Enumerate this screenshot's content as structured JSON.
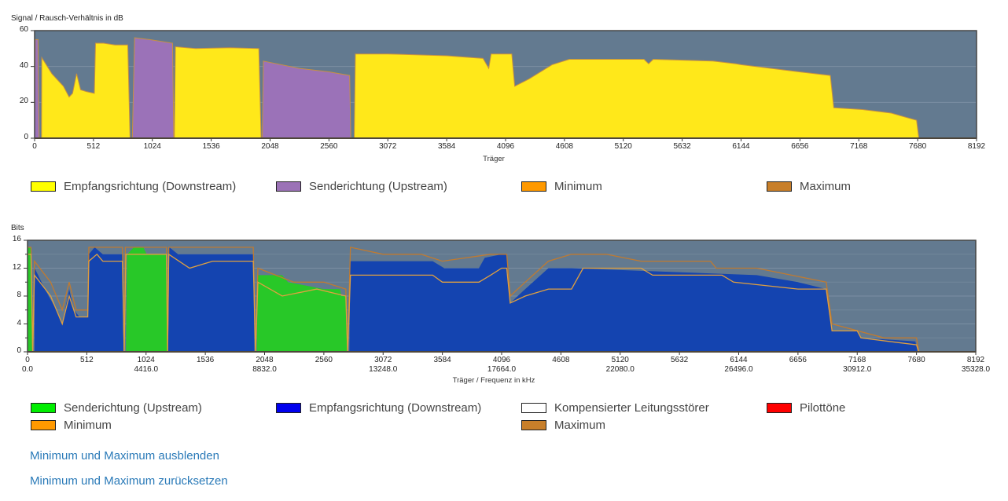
{
  "colors": {
    "plot_bg": "#637a90",
    "grid": "#7b8fa3",
    "snr_downstream": "#ffe81a",
    "snr_upstream": "#9b72b8",
    "bits_upstream": "#28c828",
    "bits_downstream": "#1444b0",
    "min_line": "#e0a040",
    "max_line": "#c07a30"
  },
  "links": {
    "hide_minmax": "Minimum und Maximum ausblenden",
    "reset_minmax": "Minimum und Maximum zurücksetzen"
  },
  "chart_data": [
    {
      "type": "area",
      "title": "Signal / Rausch-Verhältnis in dB",
      "xlabel": "Träger",
      "ylabel": "Signal / Rausch-Verhältnis in dB",
      "xlim": [
        0,
        8192
      ],
      "ylim": [
        0,
        60
      ],
      "xticks": [
        "0",
        "512",
        "1024",
        "1536",
        "2048",
        "2560",
        "3072",
        "3584",
        "4096",
        "4608",
        "5120",
        "5632",
        "6144",
        "6656",
        "7168",
        "7680",
        "8192"
      ],
      "yticks": [
        "0",
        "20",
        "40",
        "60"
      ],
      "grid": true,
      "legend": {
        "placement": "bottom",
        "items": [
          {
            "label": "Empfangsrichtung (Downstream)",
            "color": "#ffff00"
          },
          {
            "label": "Senderichtung (Upstream)",
            "color": "#9b72b6"
          },
          {
            "label": "Minimum",
            "color": "#ff9900"
          },
          {
            "label": "Maximum",
            "color": "#c87f2a"
          }
        ]
      },
      "series": [
        {
          "name": "Senderichtung (Upstream)",
          "segments": [
            [
              [
                0,
                0
              ],
              [
                5,
                55
              ],
              [
                30,
                55
              ],
              [
                40,
                0
              ]
            ],
            [
              [
                850,
                0
              ],
              [
                870,
                56
              ],
              [
                1000,
                55
              ],
              [
                1200,
                53
              ],
              [
                1210,
                0
              ]
            ],
            [
              [
                1980,
                0
              ],
              [
                1990,
                43
              ],
              [
                2300,
                39
              ],
              [
                2560,
                37
              ],
              [
                2740,
                35
              ],
              [
                2750,
                0
              ]
            ]
          ]
        },
        {
          "name": "Empfangsrichtung (Downstream)",
          "segments": [
            [
              [
                60,
                0
              ],
              [
                62,
                45
              ],
              [
                150,
                36
              ],
              [
                250,
                29
              ],
              [
                300,
                23
              ],
              [
                330,
                25
              ],
              [
                365,
                36
              ],
              [
                400,
                27
              ],
              [
                450,
                26
              ],
              [
                520,
                25
              ],
              [
                530,
                53
              ],
              [
                600,
                53
              ],
              [
                700,
                52
              ],
              [
                810,
                52
              ],
              [
                830,
                0
              ]
            ],
            [
              [
                1215,
                0
              ],
              [
                1225,
                51
              ],
              [
                1400,
                50
              ],
              [
                1700,
                50.5
              ],
              [
                1950,
                50
              ],
              [
                1970,
                0
              ]
            ],
            [
              [
                2780,
                0
              ],
              [
                2790,
                47
              ],
              [
                3072,
                47
              ],
              [
                3584,
                46
              ],
              [
                3900,
                44.5
              ],
              [
                3950,
                39
              ],
              [
                3970,
                47
              ],
              [
                4150,
                47
              ],
              [
                4175,
                29
              ],
              [
                4300,
                33
              ],
              [
                4500,
                41
              ],
              [
                4650,
                44
              ],
              [
                5300,
                44
              ],
              [
                5340,
                41.5
              ],
              [
                5380,
                44
              ],
              [
                5900,
                43
              ],
              [
                6100,
                41.5
              ],
              [
                6144,
                41
              ],
              [
                6650,
                37
              ],
              [
                6920,
                35
              ],
              [
                6950,
                17
              ],
              [
                7200,
                16
              ],
              [
                7450,
                14
              ],
              [
                7670,
                10
              ],
              [
                7690,
                0
              ]
            ]
          ]
        }
      ]
    },
    {
      "type": "area",
      "title": "Bits",
      "xlabel": "Träger / Frequenz in kHz",
      "ylabel": "Bits",
      "xlim": [
        0,
        8192
      ],
      "ylim": [
        0,
        16
      ],
      "xticks": [
        "0",
        "512",
        "1024",
        "1536",
        "2048",
        "2560",
        "3072",
        "3584",
        "4096",
        "4608",
        "5120",
        "5632",
        "6144",
        "6656",
        "7168",
        "7680",
        "8192"
      ],
      "xticks_freq": [
        "0.0",
        "4416.0",
        "8832.0",
        "13248.0",
        "17664.0",
        "22080.0",
        "26496.0",
        "30912.0",
        "35328.0"
      ],
      "yticks": [
        "0",
        "4",
        "8",
        "12",
        "16"
      ],
      "grid": true,
      "legend": {
        "placement": "bottom",
        "items": [
          {
            "label": "Senderichtung (Upstream)",
            "color": "#00ee00"
          },
          {
            "label": "Empfangsrichtung (Downstream)",
            "color": "#0000ee"
          },
          {
            "label": "Kompensierter Leitungsstörer",
            "color": "#ffffff"
          },
          {
            "label": "Pilottöne",
            "color": "#ff0000"
          },
          {
            "label": "Minimum",
            "color": "#ff9900"
          },
          {
            "label": "Maximum",
            "color": "#c87f2a"
          }
        ]
      },
      "series": [
        {
          "name": "Senderichtung (Upstream)",
          "segments": [
            [
              [
                0,
                0
              ],
              [
                5,
                15
              ],
              [
                30,
                15
              ],
              [
                40,
                0
              ]
            ],
            [
              [
                850,
                0
              ],
              [
                860,
                14
              ],
              [
                920,
                15
              ],
              [
                1000,
                15
              ],
              [
                1030,
                14
              ],
              [
                1200,
                14
              ],
              [
                1210,
                0
              ]
            ],
            [
              [
                1980,
                0
              ],
              [
                1990,
                11
              ],
              [
                2200,
                11
              ],
              [
                2250,
                10
              ],
              [
                2560,
                9
              ],
              [
                2700,
                9
              ],
              [
                2710,
                8
              ],
              [
                2750,
                8
              ],
              [
                2760,
                0
              ]
            ]
          ]
        },
        {
          "name": "Empfangsrichtung (Downstream)",
          "segments": [
            [
              [
                60,
                0
              ],
              [
                62,
                12
              ],
              [
                150,
                9
              ],
              [
                250,
                6
              ],
              [
                300,
                4
              ],
              [
                360,
                9
              ],
              [
                400,
                6
              ],
              [
                450,
                5
              ],
              [
                520,
                5
              ],
              [
                530,
                14
              ],
              [
                580,
                15
              ],
              [
                650,
                14
              ],
              [
                820,
                14
              ],
              [
                830,
                0
              ]
            ],
            [
              [
                1215,
                0
              ],
              [
                1225,
                15
              ],
              [
                1300,
                14
              ],
              [
                1950,
                14
              ],
              [
                1960,
                0
              ]
            ],
            [
              [
                2780,
                0
              ],
              [
                2790,
                13
              ],
              [
                3500,
                13
              ],
              [
                3600,
                12
              ],
              [
                3900,
                12
              ],
              [
                3950,
                13.5
              ],
              [
                4096,
                14
              ],
              [
                4140,
                14
              ],
              [
                4170,
                7
              ],
              [
                4300,
                9
              ],
              [
                4500,
                12
              ],
              [
                4600,
                12
              ],
              [
                4700,
                12
              ],
              [
                6300,
                11
              ],
              [
                6656,
                10
              ],
              [
                6900,
                9
              ],
              [
                6950,
                3
              ],
              [
                7168,
                3
              ],
              [
                7200,
                2
              ],
              [
                7670,
                1.5
              ],
              [
                7690,
                0
              ]
            ]
          ]
        },
        {
          "name": "Maximum",
          "line": [
            [
              0,
              15
            ],
            [
              30,
              15
            ],
            [
              45,
              0
            ],
            [
              60,
              13
            ],
            [
              200,
              10
            ],
            [
              300,
              6
            ],
            [
              360,
              10
            ],
            [
              420,
              6
            ],
            [
              520,
              6
            ],
            [
              530,
              15
            ],
            [
              820,
              15
            ],
            [
              835,
              0
            ],
            [
              845,
              15
            ],
            [
              1200,
              15
            ],
            [
              1210,
              0
            ],
            [
              1220,
              15
            ],
            [
              1950,
              15
            ],
            [
              1970,
              0
            ],
            [
              1990,
              12
            ],
            [
              2300,
              10
            ],
            [
              2560,
              10
            ],
            [
              2750,
              9
            ],
            [
              2765,
              0
            ],
            [
              2790,
              15
            ],
            [
              3072,
              14
            ],
            [
              3400,
              14
            ],
            [
              3584,
              13
            ],
            [
              4000,
              14
            ],
            [
              4140,
              14
            ],
            [
              4170,
              8
            ],
            [
              4300,
              10
            ],
            [
              4500,
              13
            ],
            [
              4700,
              14
            ],
            [
              5000,
              14
            ],
            [
              5300,
              13
            ],
            [
              5900,
              13
            ],
            [
              5950,
              12
            ],
            [
              6300,
              12
            ],
            [
              6600,
              11
            ],
            [
              6900,
              10
            ],
            [
              6950,
              4
            ],
            [
              7400,
              2
            ],
            [
              7680,
              2
            ],
            [
              7700,
              0
            ],
            [
              8192,
              0
            ]
          ]
        },
        {
          "name": "Minimum",
          "line": [
            [
              0,
              14
            ],
            [
              30,
              14
            ],
            [
              45,
              0
            ],
            [
              60,
              11
            ],
            [
              200,
              8
            ],
            [
              300,
              4
            ],
            [
              360,
              8
            ],
            [
              420,
              5
            ],
            [
              520,
              5
            ],
            [
              530,
              13
            ],
            [
              600,
              14
            ],
            [
              650,
              13
            ],
            [
              820,
              13
            ],
            [
              835,
              0
            ],
            [
              850,
              14
            ],
            [
              1200,
              14
            ],
            [
              1210,
              0
            ],
            [
              1220,
              14
            ],
            [
              1400,
              12
            ],
            [
              1600,
              13
            ],
            [
              1950,
              13
            ],
            [
              1970,
              0
            ],
            [
              1990,
              10
            ],
            [
              2200,
              8
            ],
            [
              2500,
              9
            ],
            [
              2750,
              8
            ],
            [
              2765,
              0
            ],
            [
              2790,
              11
            ],
            [
              3500,
              11
            ],
            [
              3584,
              10
            ],
            [
              3900,
              10
            ],
            [
              4000,
              11
            ],
            [
              4096,
              12
            ],
            [
              4140,
              12
            ],
            [
              4170,
              7
            ],
            [
              4300,
              8
            ],
            [
              4500,
              9
            ],
            [
              4700,
              9
            ],
            [
              4800,
              12
            ],
            [
              5300,
              12
            ],
            [
              5400,
              11
            ],
            [
              6000,
              11
            ],
            [
              6100,
              10
            ],
            [
              6656,
              9
            ],
            [
              6900,
              9
            ],
            [
              6950,
              3
            ],
            [
              7168,
              3
            ],
            [
              7200,
              2
            ],
            [
              7680,
              1
            ],
            [
              7700,
              0
            ],
            [
              8192,
              0
            ]
          ]
        }
      ]
    }
  ]
}
